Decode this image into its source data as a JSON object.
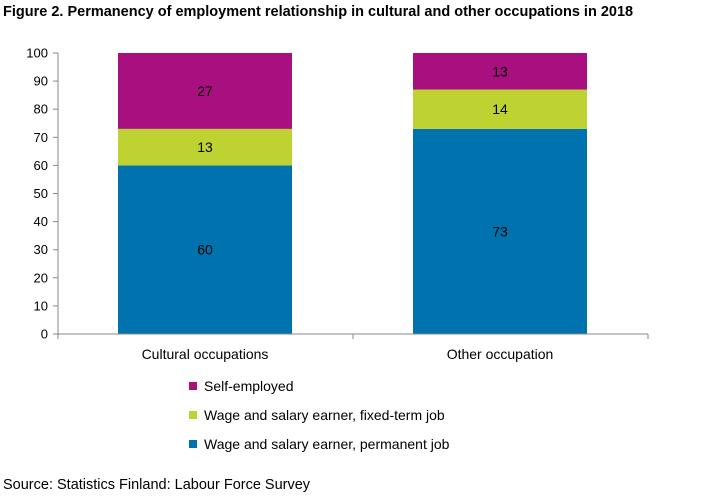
{
  "title": "Figure 2. Permanency of employment relationship in cultural and other occupations in 2018",
  "source": "Source: Statistics Finland: Labour Force Survey",
  "chart_data": {
    "type": "bar",
    "stacked": true,
    "title": "Figure 2. Permanency of employment relationship in cultural and other occupations in 2018",
    "xlabel": "",
    "ylabel": "",
    "ylim": [
      0,
      100
    ],
    "yticks": [
      0,
      10,
      20,
      30,
      40,
      50,
      60,
      70,
      80,
      90,
      100
    ],
    "grid": false,
    "legend_position": "bottom",
    "categories": [
      "Cultural occupations",
      "Other occupation"
    ],
    "series": [
      {
        "name": "Wage and salary earner, permanent job",
        "values": [
          60,
          73
        ],
        "color": "#0072AE"
      },
      {
        "name": "Wage and salary earner, fixed-term job",
        "values": [
          13,
          14
        ],
        "color": "#BED331"
      },
      {
        "name": "Self-employed",
        "values": [
          27,
          13
        ],
        "color": "#A8107F"
      }
    ],
    "legend_order": [
      "Self-employed",
      "Wage and salary earner, fixed-term job",
      "Wage and salary earner, permanent job"
    ]
  }
}
